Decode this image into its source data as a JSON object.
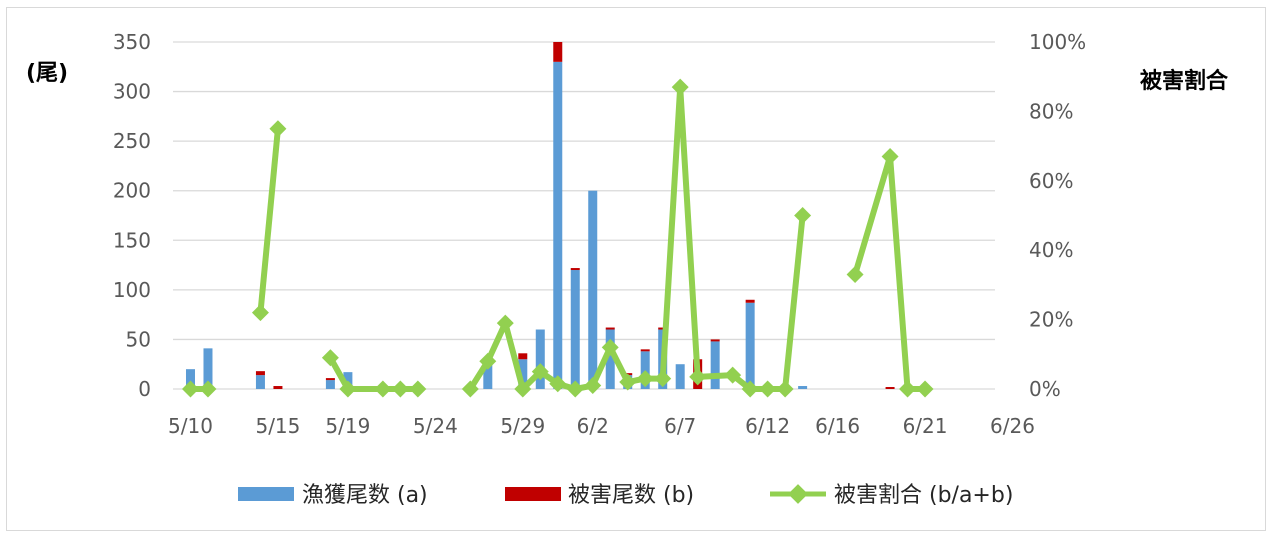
{
  "chart_data": {
    "type": "bar",
    "ylabel_left": "(尾)",
    "ylabel_right": "被害割合",
    "ylim_left": [
      0,
      350
    ],
    "ylim_right": [
      0,
      1
    ],
    "y_ticks_left": [
      "350",
      "300",
      "250",
      "200",
      "150",
      "100",
      "50",
      "0"
    ],
    "y_ticks_right": [
      "100%",
      "80%",
      "60%",
      "40%",
      "20%",
      "0%"
    ],
    "x_ticks": [
      "5/10",
      "5/15",
      "5/19",
      "5/24",
      "5/29",
      "6/2",
      "6/7",
      "6/12",
      "6/16",
      "6/21",
      "6/26"
    ],
    "grid": true,
    "legend_position": "bottom",
    "colors": {
      "catch": "#5b9bd5",
      "damage": "#c00000",
      "ratio": "#92d050",
      "grid": "#d9d9d9"
    },
    "series": [
      {
        "name": "漁獲尾数 (a)",
        "type": "bar",
        "points": [
          [
            "5/10",
            20
          ],
          [
            "5/11",
            41
          ],
          [
            "5/14",
            14
          ],
          [
            "5/18",
            9
          ],
          [
            "5/19",
            17
          ],
          [
            "5/27",
            25
          ],
          [
            "5/29",
            30
          ],
          [
            "5/30",
            60
          ],
          [
            "5/31",
            330
          ],
          [
            "6/1",
            120
          ],
          [
            "6/2",
            200
          ],
          [
            "6/3",
            60
          ],
          [
            "6/4",
            14
          ],
          [
            "6/5",
            38
          ],
          [
            "6/6",
            60
          ],
          [
            "6/7",
            25
          ],
          [
            "6/9",
            48
          ],
          [
            "6/11",
            87
          ],
          [
            "6/13",
            3
          ],
          [
            "6/14",
            3
          ]
        ]
      },
      {
        "name": "被害尾数 (b)",
        "type": "bar",
        "points": [
          [
            "5/14",
            4
          ],
          [
            "5/15",
            3
          ],
          [
            "5/18",
            2
          ],
          [
            "5/29",
            6
          ],
          [
            "5/31",
            20
          ],
          [
            "6/1",
            2
          ],
          [
            "6/3",
            2
          ],
          [
            "6/4",
            2
          ],
          [
            "6/5",
            2
          ],
          [
            "6/6",
            2
          ],
          [
            "6/8",
            30
          ],
          [
            "6/9",
            2
          ],
          [
            "6/11",
            3
          ],
          [
            "6/19",
            2
          ],
          [
            "6/21",
            2
          ]
        ]
      },
      {
        "name": "被害割合 (b/a+b)",
        "type": "line",
        "points": [
          [
            "5/10",
            0
          ],
          [
            "5/11",
            0
          ],
          [
            "5/14",
            0.22
          ],
          [
            "5/15",
            0.75
          ],
          [
            "5/18",
            0.09
          ],
          [
            "5/19",
            0
          ],
          [
            "5/21",
            0
          ],
          [
            "5/22",
            0
          ],
          [
            "5/23",
            0
          ],
          [
            "5/26",
            0
          ],
          [
            "5/27",
            0.08
          ],
          [
            "5/28",
            0.19
          ],
          [
            "5/29",
            0
          ],
          [
            "5/30",
            0.05
          ],
          [
            "5/31",
            0.015
          ],
          [
            "6/1",
            0
          ],
          [
            "6/2",
            0.01
          ],
          [
            "6/3",
            0.12
          ],
          [
            "6/4",
            0.02
          ],
          [
            "6/5",
            0.03
          ],
          [
            "6/6",
            0.03
          ],
          [
            "6/7",
            0.87
          ],
          [
            "6/8",
            0.035
          ],
          [
            "6/10",
            0.04
          ],
          [
            "6/11",
            0
          ],
          [
            "6/12",
            0
          ],
          [
            "6/13",
            0
          ],
          [
            "6/14",
            0.5
          ],
          [
            "6/17",
            0.33
          ],
          [
            "6/19",
            0.67
          ],
          [
            "6/20",
            0
          ],
          [
            "6/21",
            0
          ]
        ]
      }
    ]
  }
}
